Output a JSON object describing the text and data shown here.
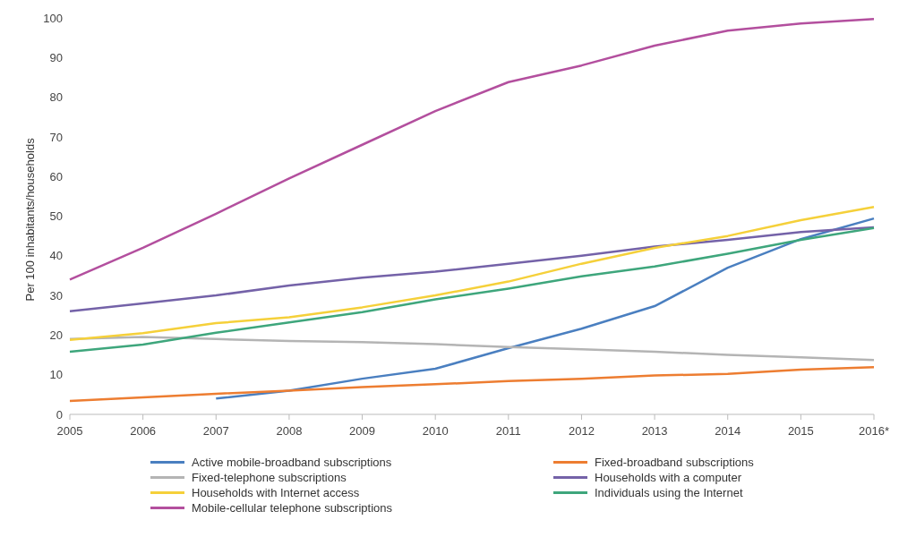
{
  "chart_data": {
    "type": "line",
    "ylabel": "Per 100 inhabitants/households",
    "categories": [
      "2005",
      "2006",
      "2007",
      "2008",
      "2009",
      "2010",
      "2011",
      "2012",
      "2013",
      "2014",
      "2015",
      "2016*"
    ],
    "ylim": [
      0,
      100
    ],
    "yticks": [
      0,
      10,
      20,
      30,
      40,
      50,
      60,
      70,
      80,
      90,
      100
    ],
    "grid": false,
    "legend": "bottom",
    "marker": "none",
    "series": [
      {
        "name": "Active mobile-broadband subscriptions",
        "color": "#4a7fc0",
        "values": [
          null,
          null,
          4,
          6,
          9,
          11.5,
          16.7,
          21.6,
          27.3,
          37,
          44.2,
          49.4
        ]
      },
      {
        "name": "Fixed-broadband subscriptions",
        "color": "#ed7d31",
        "values": [
          3.4,
          4.3,
          5.2,
          6,
          6.9,
          7.6,
          8.4,
          9,
          9.8,
          10.2,
          11.3,
          11.9
        ]
      },
      {
        "name": "Fixed-telephone subscriptions",
        "color": "#b4b4b4",
        "values": [
          19,
          19.5,
          19,
          18.5,
          18.2,
          17.7,
          17,
          16.4,
          15.8,
          15,
          14.4,
          13.7
        ]
      },
      {
        "name": "Households with a computer",
        "color": "#7462a8",
        "values": [
          26,
          28,
          30,
          32.5,
          34.5,
          36,
          38,
          40,
          42.3,
          44,
          46,
          47.2
        ]
      },
      {
        "name": "Households with Internet access",
        "color": "#f5d03a",
        "values": [
          18.8,
          20.5,
          23,
          24.5,
          27,
          30,
          33.5,
          38,
          42,
          45,
          49,
          52.3
        ]
      },
      {
        "name": "Individuals using the Internet",
        "color": "#3ea67c",
        "values": [
          15.8,
          17.6,
          20.6,
          23.2,
          25.8,
          29,
          31.7,
          34.8,
          37.3,
          40.5,
          44,
          47
        ]
      },
      {
        "name": "Mobile-cellular telephone subscriptions",
        "color": "#b34f9e",
        "values": [
          34,
          42,
          50.6,
          59.5,
          68,
          76.5,
          83.8,
          88,
          93,
          96.8,
          98.6,
          99.7
        ]
      }
    ]
  }
}
